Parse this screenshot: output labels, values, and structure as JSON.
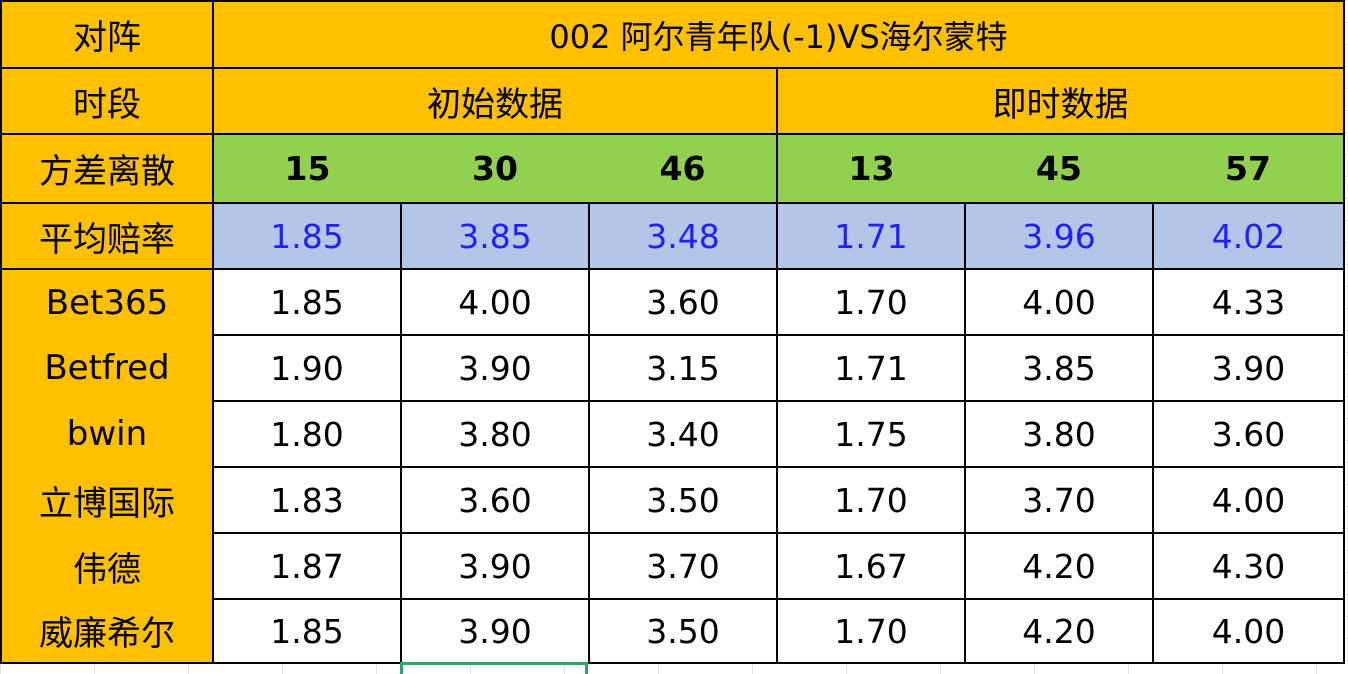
{
  "table": {
    "match_label": "对阵",
    "match_title": "002 阿尔青年队(-1)VS海尔蒙特",
    "period_label": "时段",
    "initial_label": "初始数据",
    "live_label": "即时数据",
    "variance_label": "方差离散",
    "variance": [
      "15",
      "30",
      "46",
      "13",
      "45",
      "57"
    ],
    "avg_label": "平均赔率",
    "avg": [
      "1.85",
      "3.85",
      "3.48",
      "1.71",
      "3.96",
      "4.02"
    ],
    "rows": [
      {
        "bookmaker": "Bet365",
        "values": [
          "1.85",
          "4.00",
          "3.60",
          "1.70",
          "4.00",
          "4.33"
        ]
      },
      {
        "bookmaker": "Betfred",
        "values": [
          "1.90",
          "3.90",
          "3.15",
          "1.71",
          "3.85",
          "3.90"
        ]
      },
      {
        "bookmaker": "bwin",
        "values": [
          "1.80",
          "3.80",
          "3.40",
          "1.75",
          "3.80",
          "3.60"
        ]
      },
      {
        "bookmaker": "立博国际",
        "values": [
          "1.83",
          "3.60",
          "3.50",
          "1.70",
          "3.70",
          "4.00"
        ]
      },
      {
        "bookmaker": "伟德",
        "values": [
          "1.87",
          "3.90",
          "3.70",
          "1.67",
          "4.20",
          "4.30"
        ]
      },
      {
        "bookmaker": "威廉希尔",
        "values": [
          "1.85",
          "3.90",
          "3.50",
          "1.70",
          "4.20",
          "4.00"
        ]
      }
    ]
  },
  "colors": {
    "header_fill": "#FFC000",
    "variance_fill": "#92D050",
    "avg_fill": "#B4C6E7",
    "avg_text": "#1F1FFF",
    "selection_border": "#2EA66A"
  }
}
